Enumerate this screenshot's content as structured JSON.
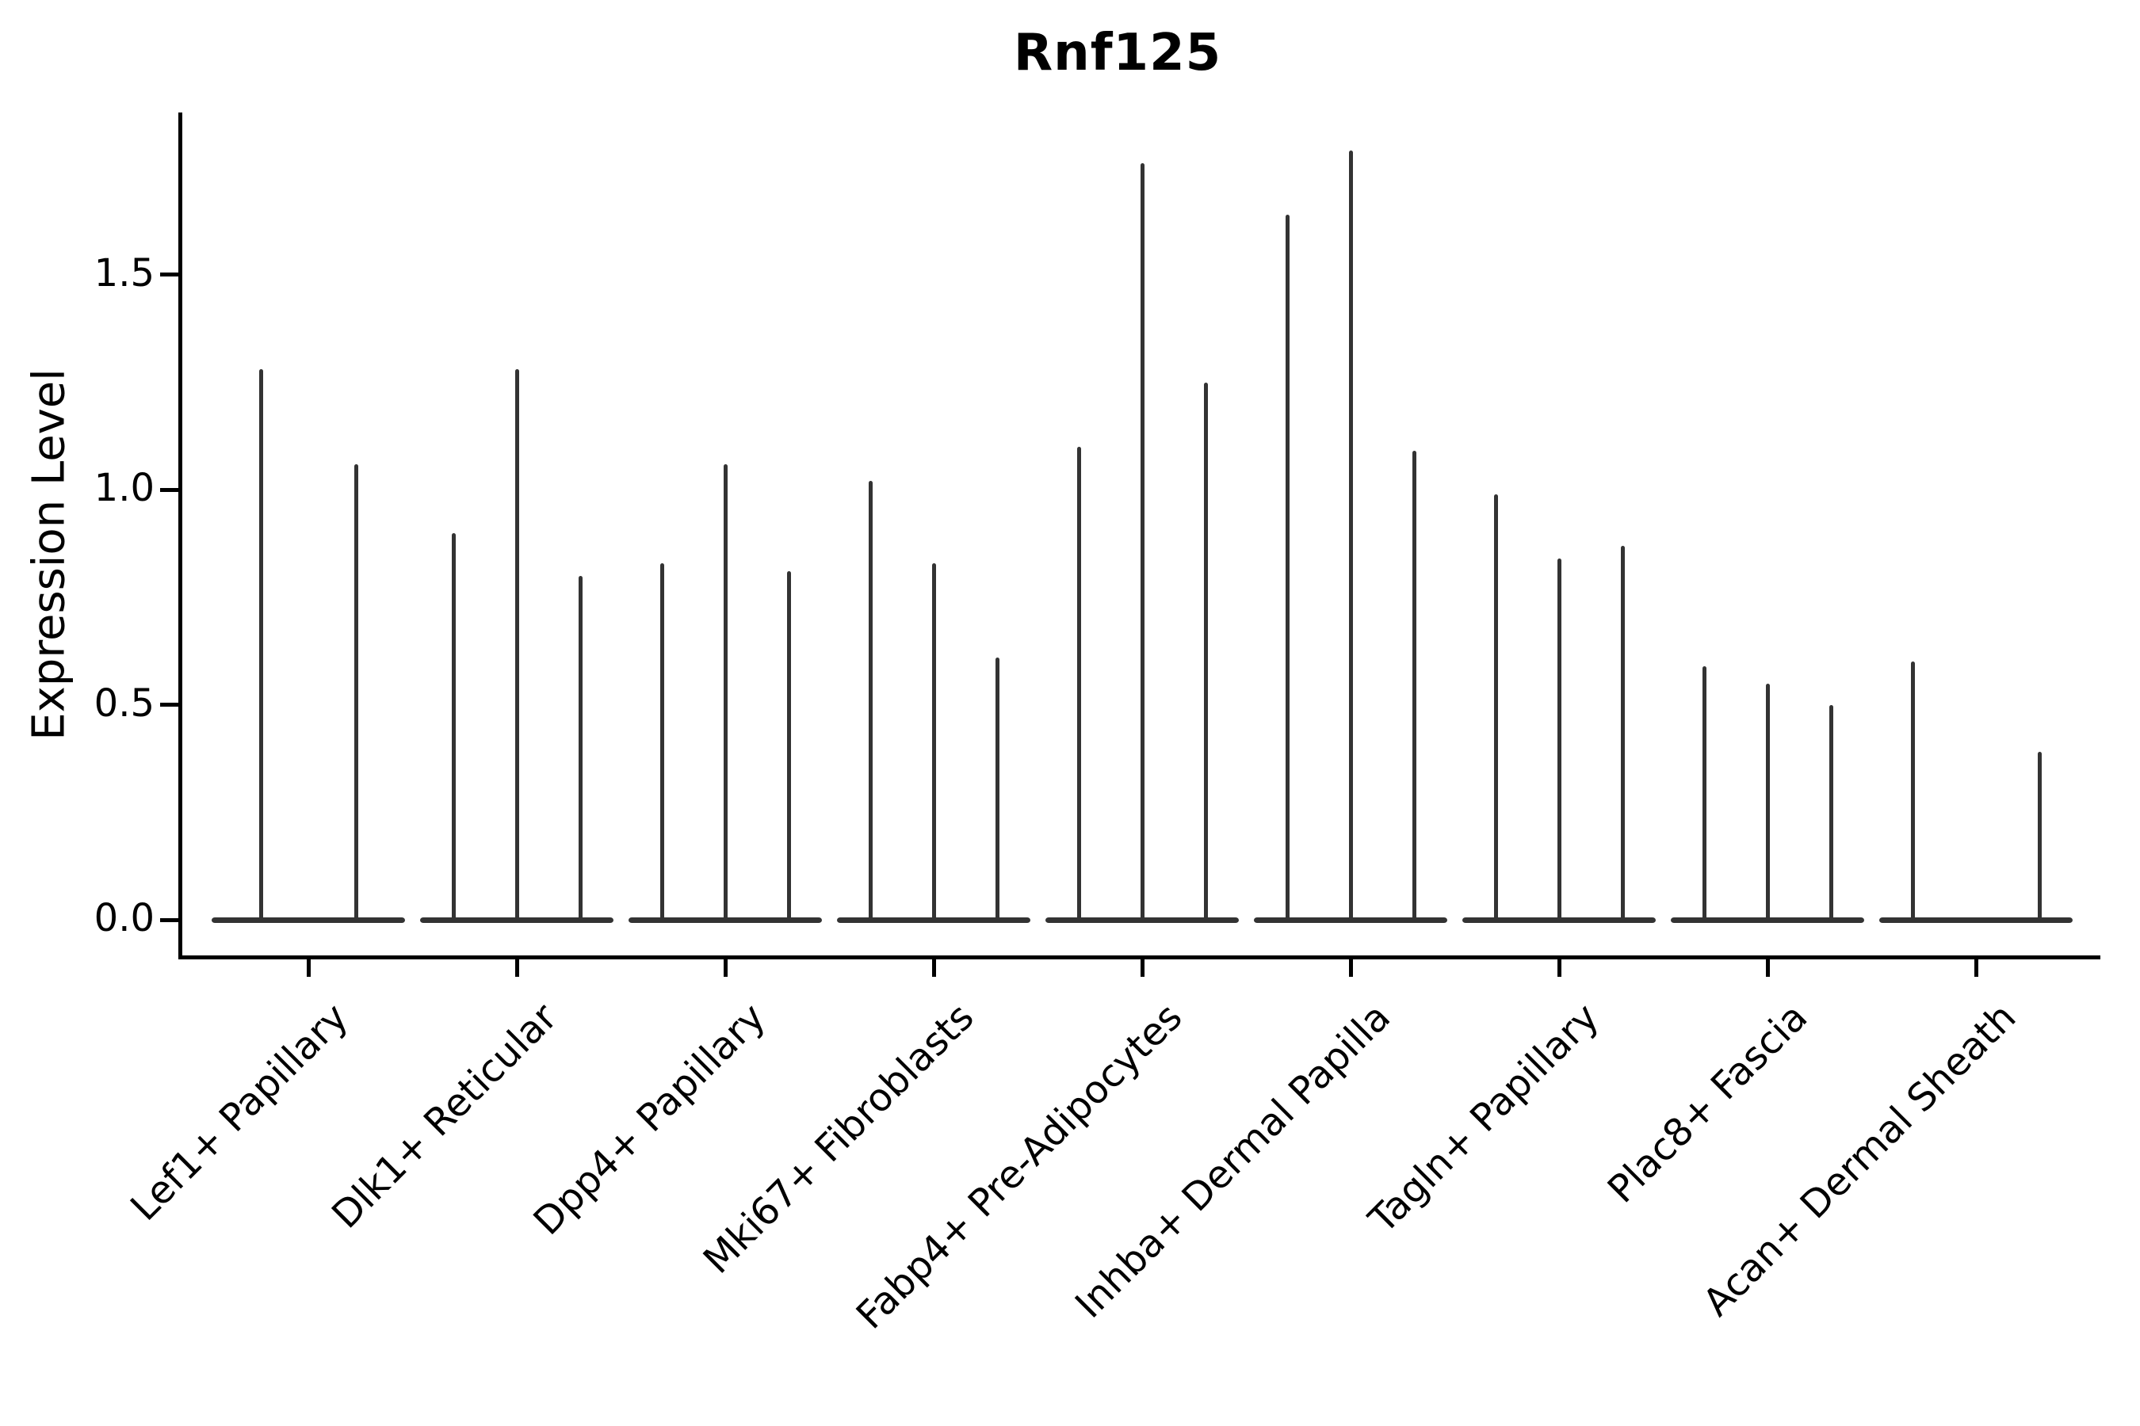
{
  "chart_data": {
    "type": "violin",
    "title": "Rnf125",
    "xlabel": "",
    "ylabel": "Expression Level",
    "ylim": [
      0,
      1.88
    ],
    "grid": false,
    "legend": "none",
    "ytick_labels": [
      "0.0",
      "0.5",
      "1.0",
      "1.5"
    ],
    "ytick_values": [
      0.0,
      0.5,
      1.0,
      1.5
    ],
    "categories": [
      "Lef1+ Papillary",
      "Dlk1+ Reticular",
      "Dpp4+ Papillary",
      "Mki67+ Fibroblasts",
      "Fabp4+ Pre-Adipocytes",
      "Inhba+ Dermal Papilla",
      "Tagln+ Papillary",
      "Plac8+ Fascia",
      "Acan+ Dermal Sheath"
    ],
    "violins": [
      {
        "category": "Lef1+ Papillary",
        "spikes": [
          {
            "offset": -60,
            "max": 1.28
          },
          {
            "offset": 60,
            "max": 1.06
          }
        ]
      },
      {
        "category": "Dlk1+ Reticular",
        "spikes": [
          {
            "offset": -80,
            "max": 0.9
          },
          {
            "offset": 0,
            "max": 1.28
          },
          {
            "offset": 80,
            "max": 0.8
          }
        ]
      },
      {
        "category": "Dpp4+ Papillary",
        "spikes": [
          {
            "offset": -80,
            "max": 0.83
          },
          {
            "offset": 0,
            "max": 1.06
          },
          {
            "offset": 80,
            "max": 0.81
          }
        ]
      },
      {
        "category": "Mki67+ Fibroblasts",
        "spikes": [
          {
            "offset": -80,
            "max": 1.02
          },
          {
            "offset": 0,
            "max": 0.83
          },
          {
            "offset": 80,
            "max": 0.61
          }
        ]
      },
      {
        "category": "Fabp4+ Pre-Adipocytes",
        "spikes": [
          {
            "offset": -80,
            "max": 1.1
          },
          {
            "offset": 0,
            "max": 1.76
          },
          {
            "offset": 80,
            "max": 1.25
          }
        ]
      },
      {
        "category": "Inhba+ Dermal Papilla",
        "spikes": [
          {
            "offset": -80,
            "max": 1.64
          },
          {
            "offset": 0,
            "max": 1.79
          },
          {
            "offset": 80,
            "max": 1.09
          }
        ]
      },
      {
        "category": "Tagln+ Papillary",
        "spikes": [
          {
            "offset": -80,
            "max": 0.99
          },
          {
            "offset": 0,
            "max": 0.84
          },
          {
            "offset": 80,
            "max": 0.87
          }
        ]
      },
      {
        "category": "Plac8+ Fascia",
        "spikes": [
          {
            "offset": -80,
            "max": 0.59
          },
          {
            "offset": 0,
            "max": 0.55
          },
          {
            "offset": 80,
            "max": 0.5
          }
        ]
      },
      {
        "category": "Acan+ Dermal Sheath",
        "spikes": [
          {
            "offset": -80,
            "max": 0.6
          },
          {
            "offset": 80,
            "max": 0.39
          }
        ]
      }
    ],
    "colors": {
      "violin": "#333333",
      "axis": "#000000",
      "text": "#000000",
      "background": "#ffffff"
    }
  }
}
